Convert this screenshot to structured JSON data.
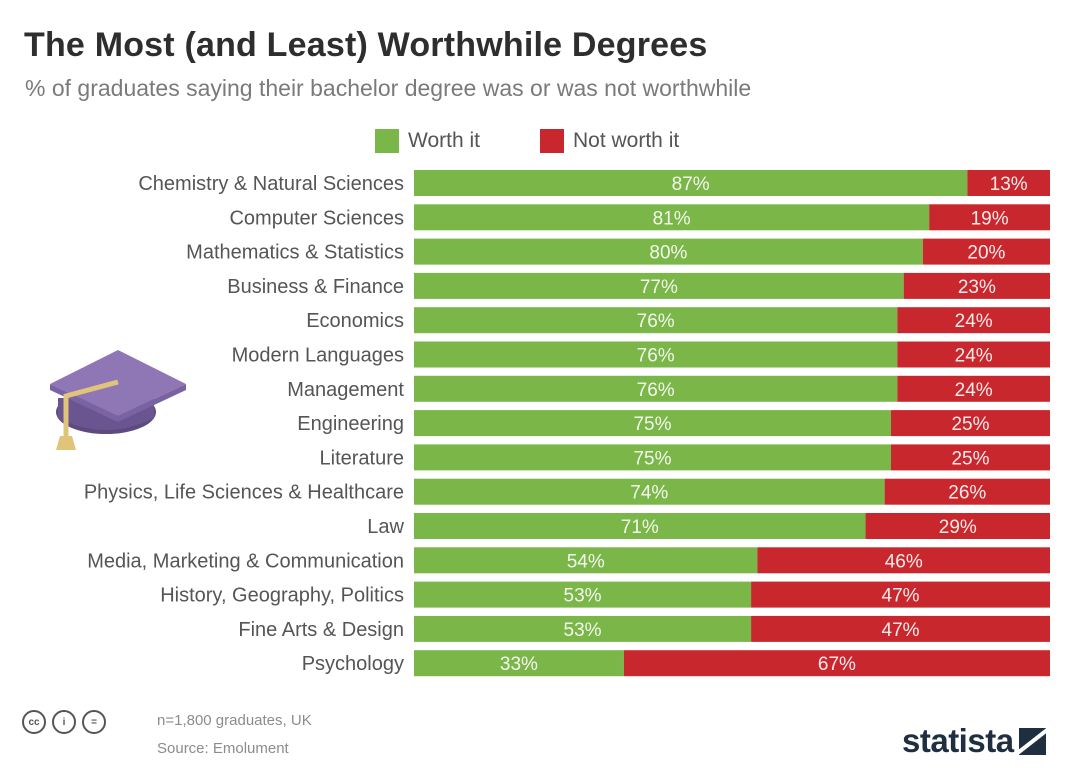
{
  "header": {
    "title": "The Most (and Least) Worthwhile Degrees",
    "subtitle": "% of graduates saying their bachelor degree was or was not worthwhile"
  },
  "colors": {
    "worth": "#7ab648",
    "not_worth": "#c8282d"
  },
  "icons": [
    "graduation-cap-icon",
    "cc-icon",
    "by-icon",
    "nd-icon",
    "statista-logo"
  ],
  "footer": {
    "note": "n=1,800 graduates, UK",
    "source": "Source: Emolument",
    "cc_labels": [
      "cc",
      "i",
      "="
    ],
    "brand": "statista"
  },
  "chart_data": {
    "type": "bar",
    "orientation": "horizontal",
    "stacked": true,
    "title": "The Most (and Least) Worthwhile Degrees",
    "subtitle": "% of graduates saying their bachelor degree was or was not worthwhile",
    "legend_position": "top",
    "grid": false,
    "xlim": [
      0,
      100
    ],
    "unit": "%",
    "categories": [
      "Chemistry & Natural Sciences",
      "Computer Sciences",
      "Mathematics & Statistics",
      "Business & Finance",
      "Economics",
      "Modern Languages",
      "Management",
      "Engineering",
      "Literature",
      "Physics, Life Sciences & Healthcare",
      "Law",
      "Media, Marketing & Communication",
      "History, Geography, Politics",
      "Fine Arts & Design",
      "Psychology"
    ],
    "series": [
      {
        "name": "Worth it",
        "color": "#7ab648",
        "values": [
          87,
          81,
          80,
          77,
          76,
          76,
          76,
          75,
          75,
          74,
          71,
          54,
          53,
          53,
          33
        ]
      },
      {
        "name": "Not worth it",
        "color": "#c8282d",
        "values": [
          13,
          19,
          20,
          23,
          24,
          24,
          24,
          25,
          25,
          26,
          29,
          46,
          47,
          47,
          67
        ]
      }
    ]
  }
}
